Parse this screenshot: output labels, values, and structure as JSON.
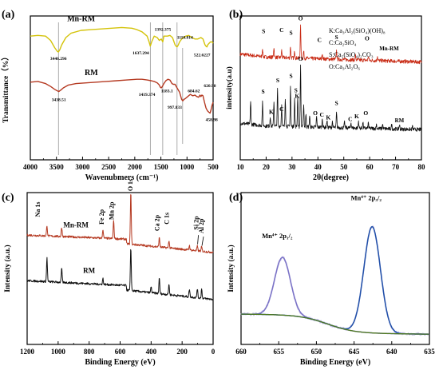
{
  "chart_data": [
    {
      "panel": "(a)",
      "type": "line",
      "xlabel": "Wavenubmers (cm⁻¹)",
      "ylabel": "Transmittance（%）",
      "xlim": [
        4000,
        400
      ],
      "ylim": [
        0,
        100
      ],
      "xticks": [
        "4000",
        "3500",
        "3000",
        "2500",
        "2000",
        "1500",
        "1000",
        "500"
      ],
      "series": [
        {
          "name": "Mn-RM",
          "color": "#d4c30a",
          "x": [
            4000,
            3850,
            3700,
            3600,
            3520,
            3470,
            3446,
            3420,
            3380,
            3300,
            3200,
            3000,
            2800,
            2600,
            2400,
            2200,
            2000,
            1900,
            1800,
            1700,
            1660,
            1637,
            1610,
            1560,
            1500,
            1460,
            1420,
            1392,
            1370,
            1340,
            1300,
            1250,
            1200,
            1150,
            1130,
            1111,
            1090,
            1060,
            1020,
            980,
            940,
            880,
            820,
            760,
            700,
            640,
            600,
            560,
            540,
            522,
            505,
            480,
            450,
            420,
            400
          ],
          "y": [
            86,
            86.5,
            86,
            83,
            78,
            75.5,
            75,
            76.5,
            80,
            85,
            88,
            90,
            90.5,
            91,
            91.5,
            92,
            91.5,
            90.5,
            89,
            86,
            82,
            79,
            82,
            86,
            85,
            83,
            84,
            82,
            86,
            86,
            86,
            86.5,
            85,
            80,
            79,
            78.5,
            79.5,
            82,
            84,
            85,
            86,
            86.5,
            85,
            84,
            84,
            85,
            84,
            80,
            79,
            78.5,
            80,
            81,
            82,
            82,
            81
          ]
        },
        {
          "name": "RM",
          "color": "#b53a22",
          "x": [
            4000,
            3850,
            3700,
            3600,
            3520,
            3470,
            3439,
            3400,
            3350,
            3250,
            3100,
            2900,
            2700,
            2500,
            2300,
            2100,
            1900,
            1800,
            1700,
            1620,
            1560,
            1500,
            1460,
            1440,
            1420,
            1400,
            1370,
            1330,
            1290,
            1250,
            1210,
            1183,
            1150,
            1110,
            1060,
            1020,
            998,
            975,
            950,
            900,
            850,
            800,
            760,
            720,
            685,
            660,
            640,
            621,
            600,
            570,
            540,
            510,
            480,
            459,
            440,
            420,
            400
          ],
          "y": [
            54,
            54.5,
            53,
            51,
            49,
            48,
            47.5,
            48.5,
            50,
            52,
            53,
            53.5,
            54,
            54.5,
            55,
            55.5,
            56,
            56,
            55.5,
            55,
            54.5,
            53.5,
            52,
            50.5,
            50,
            51,
            53,
            55,
            56,
            55.5,
            53,
            52.5,
            52.5,
            50,
            47,
            42,
            41,
            42,
            42.5,
            44,
            45.5,
            44.5,
            45,
            44,
            43.5,
            45,
            44,
            45,
            44.5,
            40,
            36,
            34,
            33,
            32.5,
            35,
            38,
            40
          ]
        }
      ],
      "annotations": [
        {
          "text": "3446.296",
          "x": 3446,
          "y": 75
        },
        {
          "text": "1637.294",
          "x": 1637,
          "y": 79
        },
        {
          "text": "1392.375",
          "x": 1392,
          "y": 82
        },
        {
          "text": "1110.814",
          "x": 1111,
          "y": 78.5
        },
        {
          "text": "522.6227",
          "x": 522,
          "y": 78.5
        },
        {
          "text": "3438.51",
          "x": 3439,
          "y": 47.5
        },
        {
          "text": "1419.374",
          "x": 1420,
          "y": 50
        },
        {
          "text": "1183.1",
          "x": 1183,
          "y": 52.5
        },
        {
          "text": "997.833",
          "x": 998,
          "y": 41
        },
        {
          "text": "684.62",
          "x": 685,
          "y": 43.5
        },
        {
          "text": "620.98",
          "x": 621,
          "y": 45
        },
        {
          "text": "458.98",
          "x": 459,
          "y": 32.5
        }
      ],
      "vlines": [
        3446,
        1637,
        1392,
        1110
      ],
      "grid": false
    },
    {
      "panel": "(b)",
      "type": "line",
      "xlabel": "2θ(degree)",
      "ylabel": "intensity(a.u)",
      "xlim": [
        10,
        80
      ],
      "ylim": [
        0,
        100
      ],
      "xticks": [
        "10",
        "20",
        "30",
        "40",
        "50",
        "60",
        "70",
        "80"
      ],
      "legend_text": [
        "K:Ca₃Al₂(SiO₄)(OH)₈",
        "C:Ca₂SiO₄",
        "S:Ca₅(SiO₄)₂CO₃",
        "O:Ca₃Al₂O₆"
      ],
      "series": [
        {
          "name": "Mn-RM",
          "color": "#c82a14",
          "baseline": [
            72,
            68
          ],
          "peaks": [
            [
              18.6,
              6
            ],
            [
              23.0,
              7
            ],
            [
              26.0,
              5
            ],
            [
              29.4,
              8
            ],
            [
              31.0,
              5
            ],
            [
              33.3,
              22
            ],
            [
              34.5,
              5
            ],
            [
              41.7,
              4
            ],
            [
              47.2,
              6
            ],
            [
              54.5,
              3
            ],
            [
              59.5,
              3
            ],
            [
              63.0,
              3
            ]
          ]
        },
        {
          "name": "RM",
          "color": "#111111",
          "baseline": [
            24,
            21
          ],
          "peaks": [
            [
              14.0,
              16
            ],
            [
              18.6,
              16
            ],
            [
              21.6,
              7
            ],
            [
              23.0,
              17
            ],
            [
              24.4,
              26
            ],
            [
              26.0,
              15
            ],
            [
              27.4,
              20
            ],
            [
              29.4,
              28
            ],
            [
              31.0,
              20
            ],
            [
              32.2,
              22
            ],
            [
              33.3,
              42
            ],
            [
              34.5,
              16
            ],
            [
              35.4,
              9
            ],
            [
              36.8,
              8
            ],
            [
              39.5,
              7
            ],
            [
              41.7,
              6
            ],
            [
              43.5,
              5
            ],
            [
              45.6,
              4
            ],
            [
              47.2,
              10
            ],
            [
              50.3,
              4
            ],
            [
              52.8,
              4
            ],
            [
              55.7,
              5
            ],
            [
              57.4,
              4
            ],
            [
              59.5,
              4
            ],
            [
              62.6,
              3
            ],
            [
              65.0,
              3
            ],
            [
              68.5,
              3
            ],
            [
              71.5,
              3
            ],
            [
              76.5,
              2
            ]
          ]
        }
      ],
      "peak_labels": [
        {
          "text": "S",
          "x": 19.0,
          "y": 88
        },
        {
          "text": "C",
          "x": 26.0,
          "y": 89
        },
        {
          "text": "S",
          "x": 29.6,
          "y": 87
        },
        {
          "text": "O",
          "x": 33.3,
          "y": 97
        },
        {
          "text": "C",
          "x": 40.6,
          "y": 82
        },
        {
          "text": "S",
          "x": 47.2,
          "y": 84
        },
        {
          "text": "O",
          "x": 59.0,
          "y": 83
        },
        {
          "text": "Mn-RM",
          "x": 67.5,
          "y": 76
        },
        {
          "text": "O",
          "x": 33.3,
          "y": 69
        },
        {
          "text": "S",
          "x": 18.8,
          "y": 46
        },
        {
          "text": "S",
          "x": 24.5,
          "y": 54
        },
        {
          "text": "K",
          "x": 22.0,
          "y": 32
        },
        {
          "text": "C",
          "x": 26.0,
          "y": 34
        },
        {
          "text": "S",
          "x": 29.6,
          "y": 57
        },
        {
          "text": "S",
          "x": 31.5,
          "y": 47
        },
        {
          "text": "K",
          "x": 32.0,
          "y": 43
        },
        {
          "text": "O",
          "x": 39.0,
          "y": 31
        },
        {
          "text": "C",
          "x": 41.5,
          "y": 30
        },
        {
          "text": "K",
          "x": 44.0,
          "y": 28
        },
        {
          "text": "S",
          "x": 47.2,
          "y": 38
        },
        {
          "text": "C",
          "x": 52.5,
          "y": 27
        },
        {
          "text": "K",
          "x": 55.0,
          "y": 29
        },
        {
          "text": "O",
          "x": 58.5,
          "y": 31
        },
        {
          "text": "RM",
          "x": 71.5,
          "y": 26
        }
      ],
      "grid": false
    },
    {
      "panel": "(c)",
      "type": "line",
      "xlabel": "Binding Energy (eV)",
      "ylabel": "Intensity (a.u.)",
      "xlim": [
        1200,
        0
      ],
      "ylim": [
        0,
        100
      ],
      "xticks": [
        "1200",
        "1000",
        "800",
        "600",
        "400",
        "200",
        "0"
      ],
      "series": [
        {
          "name": "Mn-RM",
          "color": "#b53a22",
          "baseline": [
            72,
            67
          ],
          "peaks": [
            [
              1072,
              7
            ],
            [
              977,
              6
            ],
            [
              711,
              6
            ],
            [
              642,
              12
            ],
            [
              531,
              34
            ],
            [
              347,
              6
            ],
            [
              285,
              5
            ],
            [
              153,
              3
            ],
            [
              102,
              3
            ],
            [
              74,
              3
            ]
          ]
        },
        {
          "name": "RM",
          "color": "#111111",
          "baseline": [
            42,
            36
          ],
          "peaks": [
            [
              1072,
              16
            ],
            [
              977,
              9
            ],
            [
              711,
              4
            ],
            [
              531,
              28
            ],
            [
              400,
              4
            ],
            [
              347,
              10
            ],
            [
              285,
              7
            ],
            [
              153,
              5
            ],
            [
              102,
              6
            ],
            [
              74,
              6
            ]
          ]
        }
      ],
      "labels": [
        {
          "text": "Na 1s",
          "x": 1118,
          "y": 89
        },
        {
          "text": "Mn-RM",
          "x": 885,
          "y": 77
        },
        {
          "text": "Fe 2p",
          "x": 705,
          "y": 84
        },
        {
          "text": "Mn 2p",
          "x": 642,
          "y": 88
        },
        {
          "text": "O 1s",
          "x": 520,
          "y": 105
        },
        {
          "text": "Ca 2p",
          "x": 347,
          "y": 80
        },
        {
          "text": "C 1s",
          "x": 285,
          "y": 83
        },
        {
          "text": "Si 2p",
          "x": 95,
          "y": 80
        },
        {
          "text": "Al 2p",
          "x": 62,
          "y": 78
        },
        {
          "text": "RM",
          "x": 800,
          "y": 47
        }
      ],
      "grid": false
    },
    {
      "panel": "(d)",
      "type": "line",
      "xlabel": "Binding Energy (eV)",
      "ylabel": "Intensity (a.u.)",
      "xlim": [
        660,
        635
      ],
      "ylim": [
        0,
        100
      ],
      "xticks": [
        "660",
        "655",
        "650",
        "645",
        "640",
        "635"
      ],
      "series": [
        {
          "name": "Mn⁴⁺ 2p₁/₂",
          "color": "#7a72c6",
          "peak_center": 654.5,
          "peak_height": 38
        },
        {
          "name": "Mn⁴⁺ 2p₃/₂",
          "color": "#1f4fa8",
          "peak_center": 642.6,
          "peak_height": 70
        },
        {
          "name": "background",
          "color": "#4f7a1e"
        }
      ],
      "labels": [
        {
          "text": "Mn⁴⁺ 2p₁/₂",
          "x": 655.2,
          "y": 70
        },
        {
          "text": "Mn⁴⁺ 2p₃/₂",
          "x": 643.4,
          "y": 95
        }
      ],
      "grid": false
    }
  ]
}
